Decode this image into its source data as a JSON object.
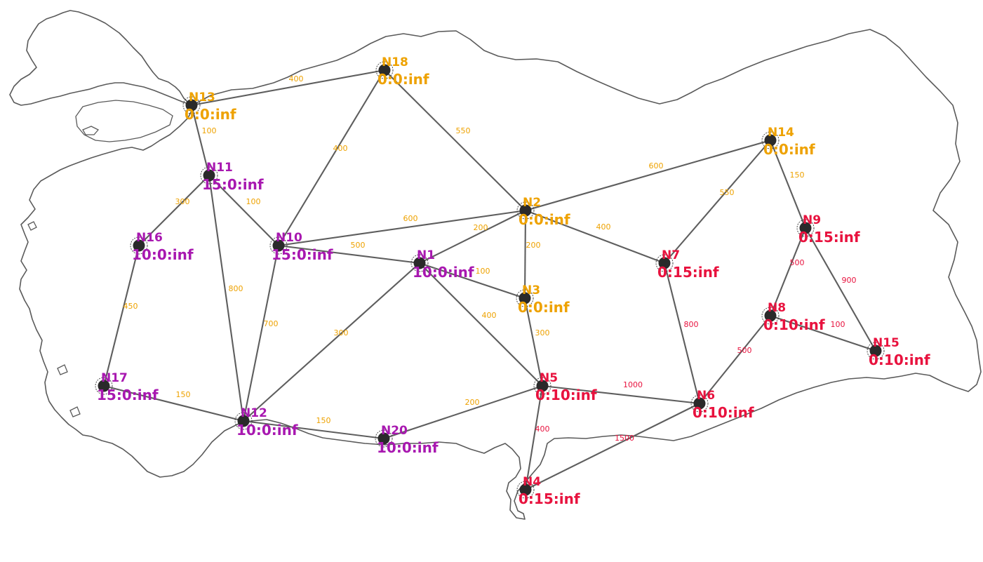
{
  "colors": {
    "gold": "#eea200",
    "magenta": "#a818b0",
    "crimson": "#e8123e",
    "edge": "#5e5e5e"
  },
  "nodes": [
    {
      "id": "N1",
      "label": "10:0:inf",
      "color": "magenta"
    },
    {
      "id": "N2",
      "label": "0:0:inf",
      "color": "gold"
    },
    {
      "id": "N3",
      "label": "0:0:inf",
      "color": "gold"
    },
    {
      "id": "N4",
      "label": "0:15:inf",
      "color": "crimson"
    },
    {
      "id": "N5",
      "label": "0:10:inf",
      "color": "crimson"
    },
    {
      "id": "N6",
      "label": "0:10:inf",
      "color": "crimson"
    },
    {
      "id": "N7",
      "label": "0:15:inf",
      "color": "crimson"
    },
    {
      "id": "N8",
      "label": "0:10:inf",
      "color": "crimson"
    },
    {
      "id": "N9",
      "label": "0:15:inf",
      "color": "crimson"
    },
    {
      "id": "N10",
      "label": "15:0:inf",
      "color": "magenta"
    },
    {
      "id": "N11",
      "label": "15:0:inf",
      "color": "magenta"
    },
    {
      "id": "N12",
      "label": "10:0:inf",
      "color": "magenta"
    },
    {
      "id": "N13",
      "label": "0:0:inf",
      "color": "gold"
    },
    {
      "id": "N14",
      "label": "0:0:inf",
      "color": "gold"
    },
    {
      "id": "N15",
      "label": "0:10:inf",
      "color": "crimson"
    },
    {
      "id": "N16",
      "label": "10:0:inf",
      "color": "magenta"
    },
    {
      "id": "N17",
      "label": "15:0:inf",
      "color": "magenta"
    },
    {
      "id": "N18",
      "label": "0:0:inf",
      "color": "gold"
    },
    {
      "id": "N20",
      "label": "10:0:inf",
      "color": "magenta"
    }
  ],
  "edges": [
    {
      "from": "N13",
      "to": "N18",
      "weight": "400",
      "color": "gold"
    },
    {
      "from": "N13",
      "to": "N11",
      "weight": "100",
      "color": "gold"
    },
    {
      "from": "N18",
      "to": "N10",
      "weight": "400",
      "color": "gold"
    },
    {
      "from": "N18",
      "to": "N2",
      "weight": "550",
      "color": "gold"
    },
    {
      "from": "N2",
      "to": "N14",
      "weight": "600",
      "color": "gold"
    },
    {
      "from": "N14",
      "to": "N7",
      "weight": "550",
      "color": "gold"
    },
    {
      "from": "N14",
      "to": "N9",
      "weight": "150",
      "color": "gold"
    },
    {
      "from": "N11",
      "to": "N16",
      "weight": "300",
      "color": "gold"
    },
    {
      "from": "N11",
      "to": "N10",
      "weight": "100",
      "color": "gold"
    },
    {
      "from": "N11",
      "to": "N12",
      "weight": "800",
      "color": "gold"
    },
    {
      "from": "N10",
      "to": "N2",
      "weight": "600",
      "color": "gold"
    },
    {
      "from": "N10",
      "to": "N1",
      "weight": "500",
      "color": "gold"
    },
    {
      "from": "N10",
      "to": "N12",
      "weight": "700",
      "color": "gold"
    },
    {
      "from": "N1",
      "to": "N2",
      "weight": "200",
      "color": "gold"
    },
    {
      "from": "N1",
      "to": "N3",
      "weight": "100",
      "color": "gold"
    },
    {
      "from": "N1",
      "to": "N5",
      "weight": "400",
      "color": "gold"
    },
    {
      "from": "N1",
      "to": "N12",
      "weight": "300",
      "color": "gold"
    },
    {
      "from": "N2",
      "to": "N3",
      "weight": "200",
      "color": "gold"
    },
    {
      "from": "N2",
      "to": "N7",
      "weight": "400",
      "color": "gold"
    },
    {
      "from": "N3",
      "to": "N5",
      "weight": "300",
      "color": "gold"
    },
    {
      "from": "N16",
      "to": "N17",
      "weight": "450",
      "color": "gold"
    },
    {
      "from": "N17",
      "to": "N12",
      "weight": "150",
      "color": "gold"
    },
    {
      "from": "N12",
      "to": "N20",
      "weight": "150",
      "color": "gold"
    },
    {
      "from": "N20",
      "to": "N5",
      "weight": "200",
      "color": "gold"
    },
    {
      "from": "N5",
      "to": "N6",
      "weight": "1000",
      "color": "crimson"
    },
    {
      "from": "N5",
      "to": "N4",
      "weight": "400",
      "color": "crimson"
    },
    {
      "from": "N4",
      "to": "N6",
      "weight": "1500",
      "color": "crimson"
    },
    {
      "from": "N7",
      "to": "N6",
      "weight": "800",
      "color": "crimson"
    },
    {
      "from": "N6",
      "to": "N8",
      "weight": "500",
      "color": "crimson"
    },
    {
      "from": "N8",
      "to": "N9",
      "weight": "500",
      "color": "crimson"
    },
    {
      "from": "N8",
      "to": "N15",
      "weight": "100",
      "color": "crimson"
    },
    {
      "from": "N9",
      "to": "N15",
      "weight": "900",
      "color": "crimson"
    }
  ]
}
